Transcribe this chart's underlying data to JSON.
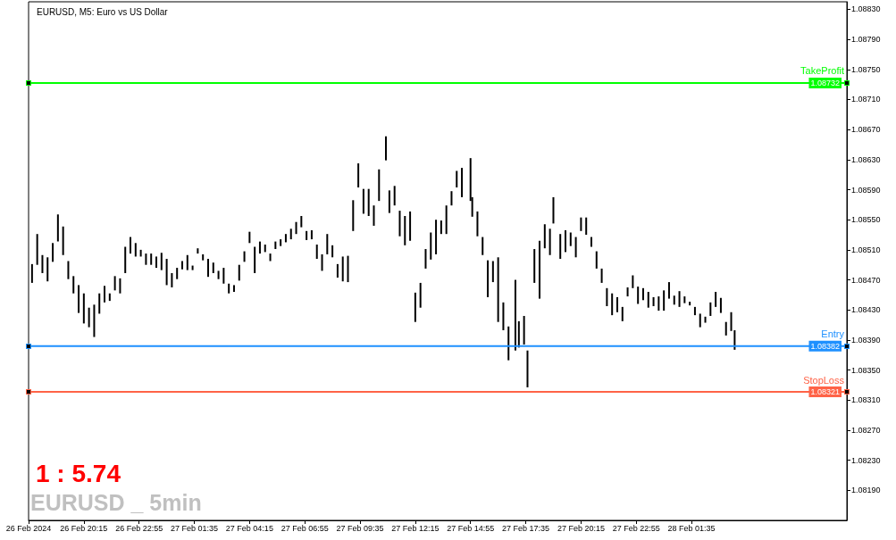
{
  "chart_data": {
    "type": "bar",
    "title": "EURUSD, M5: Euro vs US Dollar",
    "color": "#000000",
    "x": [
      "2024-02-26T17:45",
      "2024-02-26T18:00",
      "2024-02-26T18:15",
      "2024-02-26T18:30",
      "2024-02-26T18:45",
      "2024-02-26T19:00",
      "2024-02-26T19:15",
      "2024-02-26T19:30",
      "2024-02-26T19:45",
      "2024-02-26T20:00",
      "2024-02-26T20:15",
      "2024-02-26T20:30",
      "2024-02-26T20:45",
      "2024-02-26T21:00",
      "2024-02-26T21:15",
      "2024-02-26T21:30",
      "2024-02-26T21:45",
      "2024-02-26T22:00",
      "2024-02-26T22:15",
      "2024-02-26T22:30",
      "2024-02-26T22:45",
      "2024-02-26T23:00",
      "2024-02-26T23:15",
      "2024-02-26T23:30",
      "2024-02-26T23:45",
      "2024-02-27T00:00",
      "2024-02-27T00:15",
      "2024-02-27T00:30",
      "2024-02-27T00:45",
      "2024-02-27T01:00",
      "2024-02-27T01:15",
      "2024-02-27T01:30",
      "2024-02-27T01:45",
      "2024-02-27T02:00",
      "2024-02-27T02:15",
      "2024-02-27T02:30",
      "2024-02-27T02:45",
      "2024-02-27T03:00",
      "2024-02-27T03:15",
      "2024-02-27T03:30",
      "2024-02-27T03:45",
      "2024-02-27T04:00",
      "2024-02-27T04:15",
      "2024-02-27T04:30",
      "2024-02-27T04:45",
      "2024-02-27T05:00",
      "2024-02-27T05:15",
      "2024-02-27T05:30",
      "2024-02-27T05:45",
      "2024-02-27T06:00",
      "2024-02-27T06:15",
      "2024-02-27T06:30",
      "2024-02-27T06:45",
      "2024-02-27T07:00",
      "2024-02-27T07:15",
      "2024-02-27T07:30",
      "2024-02-27T07:45",
      "2024-02-27T08:00",
      "2024-02-27T08:15",
      "2024-02-27T08:30",
      "2024-02-27T08:45",
      "2024-02-27T09:00",
      "2024-02-27T09:15",
      "2024-02-27T09:30",
      "2024-02-27T09:45",
      "2024-02-27T10:00",
      "2024-02-27T10:15",
      "2024-02-27T10:30",
      "2024-02-27T10:50",
      "2024-02-27T11:00",
      "2024-02-27T11:15",
      "2024-02-27T11:30",
      "2024-02-27T11:45",
      "2024-02-27T12:00",
      "2024-02-27T12:15",
      "2024-02-27T12:30",
      "2024-02-27T12:45",
      "2024-02-27T13:00",
      "2024-02-27T13:15",
      "2024-02-27T13:30",
      "2024-02-27T13:45",
      "2024-02-27T14:00",
      "2024-02-27T14:15",
      "2024-02-27T14:30",
      "2024-02-27T14:55",
      "2024-02-27T15:00",
      "2024-02-27T15:15",
      "2024-02-27T15:30",
      "2024-02-27T15:45",
      "2024-02-27T16:00",
      "2024-02-27T16:15",
      "2024-02-27T16:30",
      "2024-02-27T16:45",
      "2024-02-27T17:05",
      "2024-02-27T17:15",
      "2024-02-27T17:30",
      "2024-02-27T17:40",
      "2024-02-27T18:00",
      "2024-02-27T18:15",
      "2024-02-27T18:30",
      "2024-02-27T18:45",
      "2024-02-27T18:55",
      "2024-02-27T19:15",
      "2024-02-27T19:30",
      "2024-02-27T19:45",
      "2024-02-27T20:00",
      "2024-02-27T20:15",
      "2024-02-27T20:30",
      "2024-02-27T20:45",
      "2024-02-27T21:00",
      "2024-02-27T21:15",
      "2024-02-27T21:30",
      "2024-02-27T21:45",
      "2024-02-27T22:00",
      "2024-02-27T22:15",
      "2024-02-27T22:30",
      "2024-02-27T22:45",
      "2024-02-27T23:00",
      "2024-02-27T23:15",
      "2024-02-27T23:30",
      "2024-02-27T23:45",
      "2024-02-28T00:00",
      "2024-02-28T00:15",
      "2024-02-28T00:30",
      "2024-02-28T00:45",
      "2024-02-28T01:00",
      "2024-02-28T01:15",
      "2024-02-28T01:30",
      "2024-02-28T01:45",
      "2024-02-28T02:00",
      "2024-02-28T02:15",
      "2024-02-28T02:30",
      "2024-02-28T02:45",
      "2024-02-28T03:00",
      "2024-02-28T03:15",
      "2024-02-28T03:30",
      "2024-02-28T03:40"
    ],
    "base": [
      1.08466,
      1.0849,
      1.08479,
      1.08468,
      1.08494,
      1.08521,
      1.08503,
      1.08471,
      1.08452,
      1.08426,
      1.08412,
      1.08407,
      1.08394,
      1.08425,
      1.0844,
      1.08442,
      1.08456,
      1.08452,
      1.08479,
      1.08505,
      1.08501,
      1.08501,
      1.0849,
      1.0849,
      1.08486,
      1.08483,
      1.08463,
      1.0846,
      1.08471,
      1.08484,
      1.08483,
      1.08483,
      1.08505,
      1.08496,
      1.08474,
      1.08479,
      1.08471,
      1.08465,
      1.08452,
      1.08454,
      1.08469,
      1.08494,
      1.08519,
      1.08479,
      1.08505,
      1.08507,
      1.08495,
      1.08511,
      1.08515,
      1.0852,
      1.08524,
      1.08531,
      1.0854,
      1.08523,
      1.08524,
      1.08498,
      1.08482,
      1.08504,
      1.085,
      1.08473,
      1.08468,
      1.08467,
      1.08535,
      1.08593,
      1.08558,
      1.08555,
      1.08542,
      1.08575,
      1.08629,
      1.08559,
      1.08569,
      1.08528,
      1.08516,
      1.08522,
      1.08414,
      1.08433,
      1.08485,
      1.08497,
      1.08504,
      1.08531,
      1.08531,
      1.08569,
      1.08593,
      1.0858,
      1.08575,
      1.08554,
      1.08528,
      1.08503,
      1.08447,
      1.08467,
      1.08414,
      1.08403,
      1.08363,
      1.08376,
      1.0838,
      1.08384,
      1.08327,
      1.08466,
      1.08445,
      1.08512,
      1.08503,
      1.08545,
      1.08498,
      1.08507,
      1.08515,
      1.085,
      1.08535,
      1.0853,
      1.08514,
      1.08485,
      1.08466,
      1.08435,
      1.08423,
      1.08427,
      1.08415,
      1.08448,
      1.08459,
      1.08438,
      1.08443,
      1.08433,
      1.08435,
      1.08429,
      1.08429,
      1.08445,
      1.08437,
      1.08434,
      1.08439,
      1.08436,
      1.08423,
      1.08407,
      1.08413,
      1.08422,
      1.08434,
      1.08426,
      1.08396,
      1.08402,
      1.08377
    ],
    "values": [
      0.00025,
      0.00041,
      0.00024,
      0.00032,
      0.00025,
      0.00036,
      0.00038,
      0.00024,
      0.00023,
      0.00037,
      0.0004,
      0.00026,
      0.00043,
      0.00027,
      0.00022,
      0.0001,
      0.00019,
      0.0002,
      0.00035,
      0.00022,
      0.00018,
      9e-05,
      0.00015,
      0.00015,
      0.00015,
      0.00023,
      0.00035,
      0.00019,
      0.00015,
      0.00011,
      0.0002,
      6e-05,
      7e-05,
      8e-05,
      0.00024,
      0.00014,
      0.00011,
      0.00021,
      0.00013,
      9e-05,
      0.00021,
      0.00014,
      0.00015,
      0.00035,
      0.00016,
      0.0001,
      0.0001,
      0.0001,
      9e-05,
      0.00011,
      0.00014,
      0.00016,
      0.00015,
      0.00012,
      0.00012,
      0.00019,
      0.00022,
      0.00027,
      0.00016,
      0.00018,
      0.00033,
      0.00035,
      0.00041,
      0.00032,
      0.00033,
      0.00036,
      0.00027,
      0.00042,
      0.00032,
      0.0003,
      0.00026,
      0.00034,
      0.00039,
      0.00039,
      0.00039,
      0.00033,
      0.00026,
      0.00036,
      0.00046,
      0.00018,
      0.00038,
      0.00019,
      0.00022,
      0.00039,
      0.00057,
      0.00026,
      0.00033,
      0.00024,
      0.00049,
      0.00028,
      0.00086,
      0.00037,
      0.00045,
      0.00094,
      0.00035,
      0.00038,
      0.00049,
      0.00045,
      0.00077,
      0.00032,
      0.00035,
      0.00035,
      0.00033,
      0.00029,
      0.00018,
      0.00027,
      0.00018,
      0.00023,
      0.00013,
      0.00023,
      0.00019,
      0.00024,
      0.00029,
      0.0002,
      0.00019,
      0.00012,
      0.00017,
      0.00023,
      0.00016,
      0.00021,
      0.00012,
      0.00019,
      0.00027,
      0.00022,
      0.00012,
      0.00021,
      9e-05,
      5e-05,
      0.00011,
      0.00018,
      8e-05,
      0.00018,
      0.0002,
      0.0002,
      0.00018,
      0.00025,
      0.00026
    ],
    "xlim": [
      "2024-02-26T17:35",
      "2024-02-28T09:05"
    ],
    "xticks": [
      {
        "value": "2024-02-26T17:35",
        "label": "26 Feb 2024"
      },
      {
        "value": "2024-02-26T20:15",
        "label": "26 Feb 20:15"
      },
      {
        "value": "2024-02-26T22:55",
        "label": "26 Feb 22:55"
      },
      {
        "value": "2024-02-27T01:35",
        "label": "27 Feb 01:35"
      },
      {
        "value": "2024-02-27T04:15",
        "label": "27 Feb 04:15"
      },
      {
        "value": "2024-02-27T06:55",
        "label": "27 Feb 06:55"
      },
      {
        "value": "2024-02-27T09:35",
        "label": "27 Feb 09:35"
      },
      {
        "value": "2024-02-27T12:15",
        "label": "27 Feb 12:15"
      },
      {
        "value": "2024-02-27T14:55",
        "label": "27 Feb 14:55"
      },
      {
        "value": "2024-02-27T17:35",
        "label": "27 Feb 17:35"
      },
      {
        "value": "2024-02-27T20:15",
        "label": "27 Feb 20:15"
      },
      {
        "value": "2024-02-27T22:55",
        "label": "27 Feb 22:55"
      },
      {
        "value": "2024-02-28T01:35",
        "label": "28 Feb 01:35"
      }
    ],
    "ylim": [
      1.0815,
      1.0884
    ],
    "yticks": [
      {
        "value": 1.0819,
        "label": "1.08190"
      },
      {
        "value": 1.0823,
        "label": "1.08230"
      },
      {
        "value": 1.0827,
        "label": "1.08270"
      },
      {
        "value": 1.0831,
        "label": "1.08310"
      },
      {
        "value": 1.0835,
        "label": "1.08350"
      },
      {
        "value": 1.0839,
        "label": "1.08390"
      },
      {
        "value": 1.0843,
        "label": "1.08430"
      },
      {
        "value": 1.0847,
        "label": "1.08470"
      },
      {
        "value": 1.0851,
        "label": "1.08510"
      },
      {
        "value": 1.0855,
        "label": "1.08550"
      },
      {
        "value": 1.0859,
        "label": "1.08590"
      },
      {
        "value": 1.0863,
        "label": "1.08630"
      },
      {
        "value": 1.0867,
        "label": "1.08670"
      },
      {
        "value": 1.0871,
        "label": "1.08710"
      },
      {
        "value": 1.0875,
        "label": "1.08750"
      },
      {
        "value": 1.0879,
        "label": "1.08790"
      },
      {
        "value": 1.0883,
        "label": "1.08830"
      }
    ],
    "ref_lines": [
      {
        "axis": "y",
        "value": 1.08732,
        "label": "TakeProfit",
        "color": "#00ff00"
      },
      {
        "axis": "y",
        "value": 1.08382,
        "label": "Entry",
        "color": "#1e90ff"
      },
      {
        "axis": "y",
        "value": 1.08321,
        "label": "StopLoss",
        "color": "#ff6347"
      }
    ],
    "annotations": [
      "1 : 5.74",
      "EURUSD _ 5min",
      {
        "text": "1.08732",
        "y": 1.08732
      },
      {
        "text": "1.08382",
        "y": 1.08382
      },
      {
        "text": "1.08321",
        "y": 1.08321
      }
    ]
  }
}
